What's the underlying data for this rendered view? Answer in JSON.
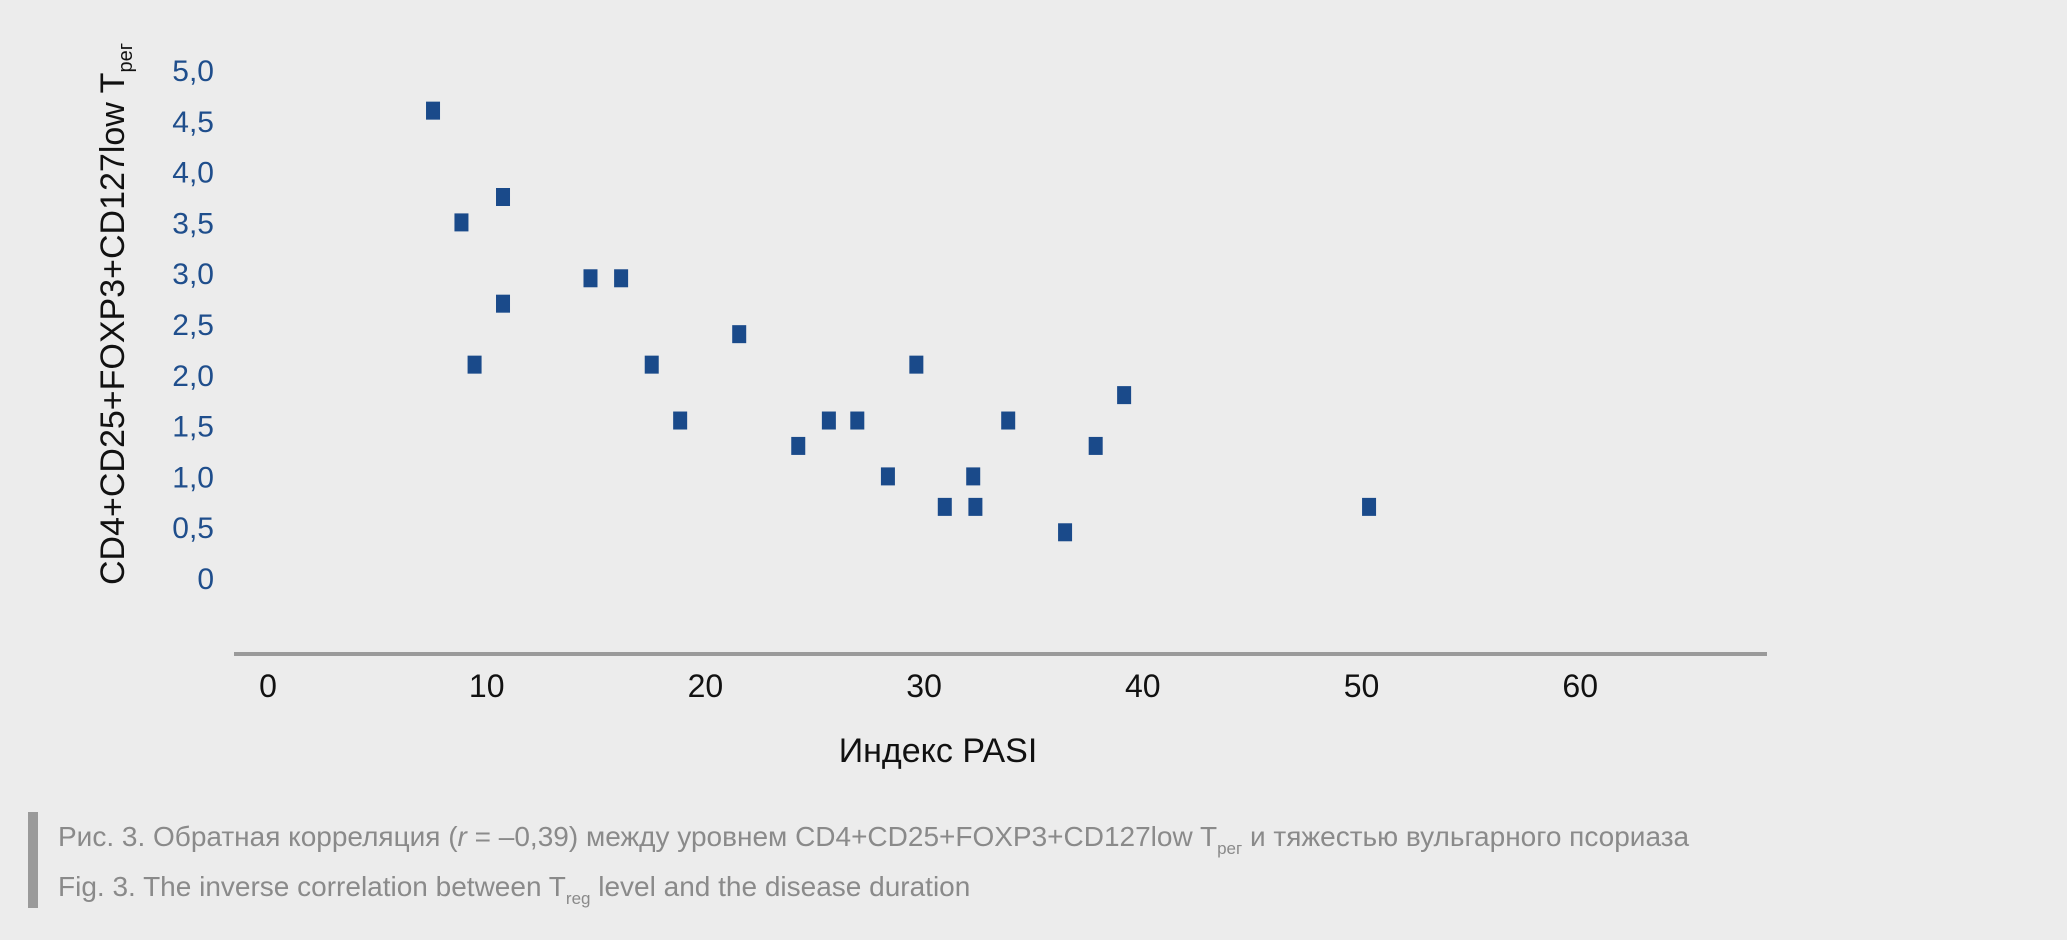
{
  "colors": {
    "background": "#ececec",
    "point": "#1a4a8a",
    "y_tick_text": "#1f4e8c",
    "axis_line": "#9a9a9a",
    "caption_text": "#8a8a8a"
  },
  "chart_data": {
    "type": "scatter",
    "xlabel": "Индекс PASI",
    "ylabel_main": "CD4+CD25+FOXP3+CD127low T",
    "ylabel_sub": "рег",
    "x_ticks": [
      "0",
      "10",
      "20",
      "30",
      "40",
      "50",
      "60"
    ],
    "y_ticks": [
      "0",
      "0,5",
      "1,0",
      "1,5",
      "2,0",
      "2,5",
      "3,0",
      "3,5",
      "4,0",
      "4,5",
      "5,0"
    ],
    "xlim": [
      0,
      67
    ],
    "ylim": [
      0,
      5
    ],
    "grid": false,
    "points": [
      {
        "x": 7.5,
        "y": 4.6
      },
      {
        "x": 8.8,
        "y": 3.5
      },
      {
        "x": 9.4,
        "y": 2.1
      },
      {
        "x": 10.7,
        "y": 3.75
      },
      {
        "x": 10.7,
        "y": 2.7
      },
      {
        "x": 14.7,
        "y": 2.95
      },
      {
        "x": 16.1,
        "y": 2.95
      },
      {
        "x": 17.5,
        "y": 2.1
      },
      {
        "x": 18.8,
        "y": 1.55
      },
      {
        "x": 21.5,
        "y": 2.4
      },
      {
        "x": 24.2,
        "y": 1.3
      },
      {
        "x": 25.6,
        "y": 1.55
      },
      {
        "x": 26.9,
        "y": 1.55
      },
      {
        "x": 28.3,
        "y": 1.0
      },
      {
        "x": 29.6,
        "y": 2.1
      },
      {
        "x": 30.9,
        "y": 0.7
      },
      {
        "x": 32.2,
        "y": 1.0
      },
      {
        "x": 32.3,
        "y": 0.7
      },
      {
        "x": 33.8,
        "y": 1.55
      },
      {
        "x": 36.4,
        "y": 0.45
      },
      {
        "x": 37.8,
        "y": 1.3
      },
      {
        "x": 39.1,
        "y": 1.8
      },
      {
        "x": 50.3,
        "y": 0.7
      }
    ]
  },
  "caption": {
    "ru_before": "Рис. 3. Обратная корреляция (",
    "ru_r": "r",
    "ru_mid": " = –0,39) между уровнем CD4+CD25+FOXP3+CD127low T",
    "ru_sub": "рег",
    "ru_after": " и тяжестью вульгарного псориаза",
    "en_before": "Fig. 3. The inverse correlation between T",
    "en_sub": "reg",
    "en_after": " level and the disease duration"
  }
}
